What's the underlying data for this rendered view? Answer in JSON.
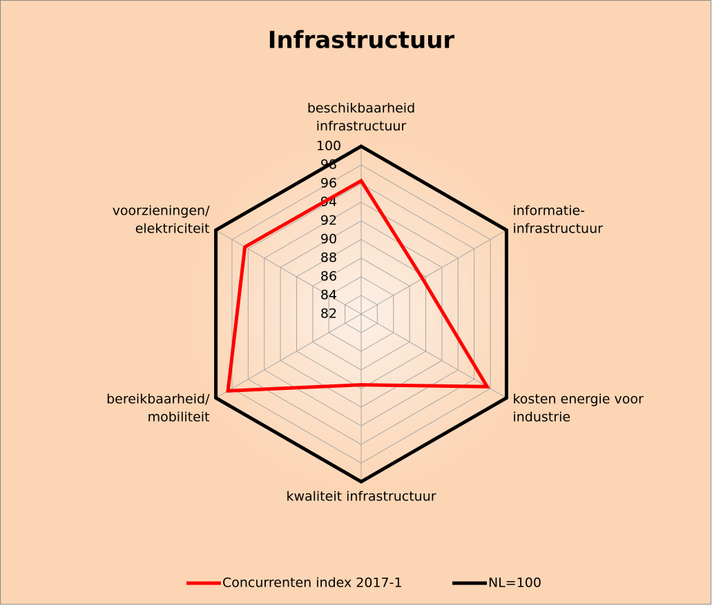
{
  "chart_data": {
    "type": "radar",
    "title": "Infrastructuur",
    "categories": [
      "beschikbaarheid\ninfrastructuur",
      "informatie-\ninfrastructuur",
      "kosten energie voor\nindustrie",
      "kwaliteit infrastructuur",
      "bereikbaarheid/\nmobiliteit",
      "voorzieningen/\nelektriciteit"
    ],
    "series": [
      {
        "name": "Concurrenten index 2017-1",
        "color": "#ff0000",
        "values": [
          96.3,
          89.6,
          97.6,
          89.6,
          98.5,
          96.4
        ]
      },
      {
        "name": "NL=100",
        "color": "#000000",
        "values": [
          100,
          100,
          100,
          100,
          100,
          100
        ]
      }
    ],
    "ylim": [
      82,
      100
    ],
    "yticks": [
      82,
      84,
      86,
      88,
      90,
      92,
      94,
      96,
      98,
      100
    ],
    "grid": true,
    "legend": "bottom"
  }
}
